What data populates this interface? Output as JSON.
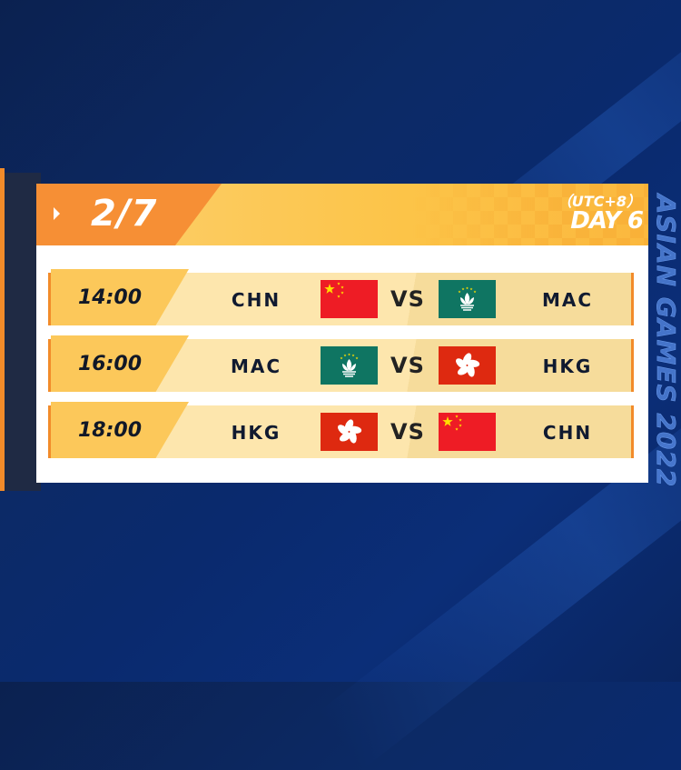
{
  "header": {
    "date": "2/7",
    "timezone": "（UTC+8）",
    "day": "DAY 6"
  },
  "watermark": "ASIAN GAMES 2022",
  "vs_label": "VS",
  "matches": [
    {
      "time": "14:00",
      "home": "CHN",
      "away": "MAC"
    },
    {
      "time": "16:00",
      "home": "MAC",
      "away": "HKG"
    },
    {
      "time": "18:00",
      "home": "HKG",
      "away": "CHN"
    }
  ],
  "colors": {
    "orange": "#f68f35",
    "yellow": "#fcc448",
    "row": "#fde6ad",
    "navy": "#0b2150"
  }
}
